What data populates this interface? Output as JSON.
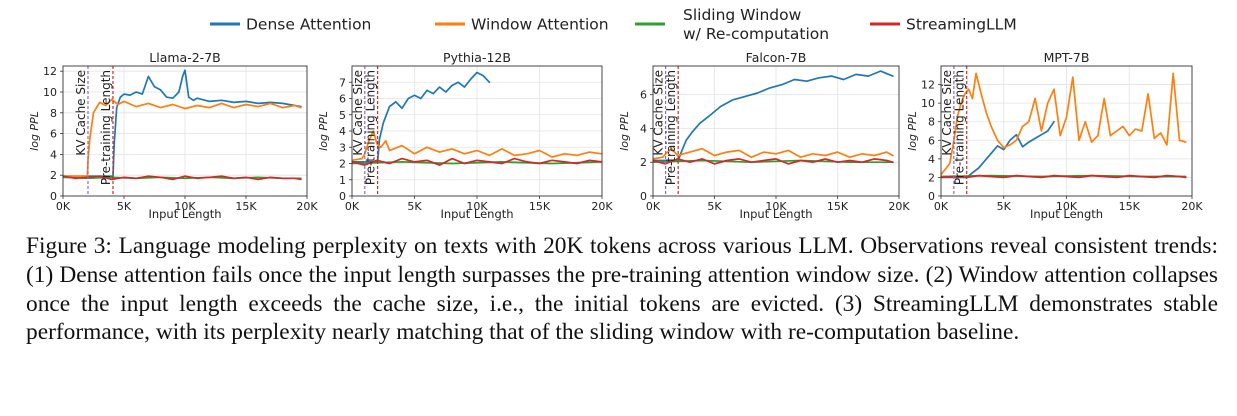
{
  "legend": {
    "position": "top-center",
    "entries": [
      {
        "label": "Dense Attention",
        "color": "#1f77b4"
      },
      {
        "label": "Window Attention",
        "color": "#ff7f0e"
      },
      {
        "label": "Sliding Window w/ Re-computation",
        "lines": [
          "Sliding Window",
          "w/ Re-computation"
        ],
        "color": "#2ca02c"
      },
      {
        "label": "StreamingLLM",
        "color": "#d62728"
      }
    ]
  },
  "caption": {
    "label": "Figure 3:",
    "text": "Language modeling perplexity on texts with 20K tokens across various LLM. Observations reveal consistent trends: (1) Dense attention fails once the input length surpasses the pre-training attention window size. (2) Window attention collapses once the input length exceeds the cache size, i.e., the initial tokens are evicted. (3) StreamingLLM demonstrates stable performance, with its perplexity nearly matching that of the sliding window with re-computation baseline."
  },
  "chart_data": [
    {
      "type": "line",
      "title": "Llama-2-7B",
      "xlabel": "Input Length",
      "ylabel": "log PPL",
      "xlim": [
        0,
        20000
      ],
      "ylim": [
        0,
        12.5
      ],
      "xticks": [
        0,
        5000,
        10000,
        15000,
        20000
      ],
      "xtick_labels": [
        "0K",
        "5K",
        "10K",
        "15K",
        "20K"
      ],
      "yticks": [
        0,
        2,
        4,
        6,
        8,
        10,
        12
      ],
      "grid": true,
      "vlines": [
        {
          "x": 2048,
          "label": "KV Cache Size",
          "color": "#9467bd"
        },
        {
          "x": 4096,
          "label": "Pre-training Length",
          "color": "#d62728"
        }
      ],
      "series": [
        {
          "name": "Dense Attention",
          "color": "#1f77b4",
          "x": [
            0,
            4096,
            4200,
            4400,
            4700,
            5000,
            5500,
            6000,
            6500,
            7000,
            7500,
            8000,
            8500,
            9000,
            9500,
            9800,
            10000,
            10300,
            10700,
            11000,
            12000,
            13000,
            14000,
            15000,
            16000,
            17000,
            18000,
            19000,
            19500
          ],
          "y": [
            1.9,
            1.9,
            5.0,
            8.5,
            9.5,
            9.8,
            9.7,
            10.0,
            9.8,
            11.5,
            10.5,
            10.2,
            9.5,
            9.4,
            10.0,
            11.5,
            12.1,
            9.5,
            9.2,
            9.4,
            9.1,
            9.2,
            9.0,
            9.1,
            8.9,
            9.0,
            8.9,
            8.7,
            8.6
          ]
        },
        {
          "name": "Window Attention",
          "color": "#ff7f0e",
          "x": [
            0,
            1000,
            2000,
            2048,
            2200,
            2500,
            3000,
            3500,
            4000,
            4500,
            5000,
            6000,
            7000,
            8000,
            9000,
            10000,
            11000,
            12000,
            13000,
            14000,
            15000,
            16000,
            17000,
            18000,
            19000,
            19500
          ],
          "y": [
            1.9,
            1.9,
            1.9,
            3.5,
            5.5,
            8.0,
            9.0,
            8.7,
            9.3,
            8.8,
            9.1,
            8.6,
            8.9,
            8.5,
            8.8,
            8.4,
            8.7,
            8.5,
            8.9,
            8.5,
            8.8,
            8.6,
            8.9,
            8.5,
            8.7,
            8.5
          ]
        },
        {
          "name": "Sliding Window w/ Re-computation",
          "color": "#2ca02c",
          "x": [
            0,
            2000,
            4000,
            6000,
            8000,
            10000,
            12000,
            14000,
            16000,
            18000,
            19500
          ],
          "y": [
            1.8,
            1.7,
            1.8,
            1.7,
            1.8,
            1.7,
            1.8,
            1.7,
            1.8,
            1.7,
            1.7
          ]
        },
        {
          "name": "StreamingLLM",
          "color": "#d62728",
          "x": [
            0,
            1000,
            2000,
            3000,
            4000,
            5000,
            6000,
            7000,
            8000,
            9000,
            10000,
            11000,
            12000,
            13000,
            14000,
            15000,
            16000,
            17000,
            18000,
            19000,
            19500
          ],
          "y": [
            1.9,
            1.7,
            1.8,
            1.9,
            1.6,
            1.8,
            1.7,
            1.9,
            1.8,
            1.6,
            1.9,
            1.7,
            1.8,
            1.9,
            1.7,
            1.8,
            1.6,
            1.8,
            1.7,
            1.7,
            1.6
          ]
        }
      ]
    },
    {
      "type": "line",
      "title": "Pythia-12B",
      "xlabel": "Input Length",
      "ylabel": "log PPL",
      "xlim": [
        0,
        20000
      ],
      "ylim": [
        0,
        8
      ],
      "xticks": [
        0,
        5000,
        10000,
        15000,
        20000
      ],
      "xtick_labels": [
        "0K",
        "5K",
        "10K",
        "15K",
        "20K"
      ],
      "yticks": [
        0,
        1,
        2,
        3,
        4,
        5,
        6,
        7
      ],
      "grid": true,
      "vlines": [
        {
          "x": 1024,
          "label": "KV Cache Size",
          "color": "#9467bd"
        },
        {
          "x": 2048,
          "label": "Pre-training Length",
          "color": "#d62728"
        }
      ],
      "series": [
        {
          "name": "Dense Attention",
          "color": "#1f77b4",
          "x": [
            0,
            2048,
            2200,
            2500,
            3000,
            3500,
            4000,
            4500,
            5000,
            5500,
            6000,
            6500,
            7000,
            7500,
            8000,
            8500,
            9000,
            9500,
            10000,
            10500,
            11000
          ],
          "y": [
            2.1,
            2.1,
            3.5,
            4.5,
            5.5,
            5.8,
            5.4,
            6.0,
            6.2,
            6.0,
            6.5,
            6.3,
            6.7,
            6.4,
            6.8,
            7.0,
            6.7,
            7.2,
            7.6,
            7.4,
            7.0
          ]
        },
        {
          "name": "Window Attention",
          "color": "#ff7f0e",
          "x": [
            0,
            800,
            1024,
            1300,
            1700,
            2000,
            2300,
            2700,
            3000,
            4000,
            5000,
            6000,
            7000,
            8000,
            9000,
            10000,
            11000,
            12000,
            13000,
            14000,
            15000,
            16000,
            17000,
            18000,
            19000,
            20000
          ],
          "y": [
            2.2,
            2.3,
            2.6,
            3.3,
            4.0,
            3.2,
            3.0,
            3.4,
            2.8,
            3.1,
            2.6,
            3.0,
            2.7,
            2.9,
            2.6,
            2.8,
            2.5,
            2.9,
            2.5,
            2.6,
            2.8,
            2.4,
            2.6,
            2.5,
            2.7,
            2.6
          ]
        },
        {
          "name": "Sliding Window w/ Re-computation",
          "color": "#2ca02c",
          "x": [
            0,
            4000,
            8000,
            12000,
            16000,
            20000
          ],
          "y": [
            2.0,
            2.1,
            2.0,
            2.1,
            2.0,
            2.1
          ]
        },
        {
          "name": "StreamingLLM",
          "color": "#d62728",
          "x": [
            0,
            1000,
            2000,
            3000,
            4000,
            5000,
            6000,
            7000,
            8000,
            9000,
            10000,
            11000,
            12000,
            13000,
            14000,
            15000,
            16000,
            17000,
            18000,
            19000,
            20000
          ],
          "y": [
            2.1,
            1.9,
            2.2,
            2.0,
            2.3,
            2.1,
            2.2,
            1.9,
            2.3,
            2.0,
            2.2,
            2.1,
            2.0,
            2.3,
            2.1,
            2.0,
            2.2,
            2.1,
            2.0,
            2.2,
            2.1
          ]
        }
      ]
    },
    {
      "type": "line",
      "title": "Falcon-7B",
      "xlabel": "Input Length",
      "ylabel": "log PPL",
      "xlim": [
        0,
        20000
      ],
      "ylim": [
        0,
        7.7
      ],
      "xticks": [
        0,
        5000,
        10000,
        15000,
        20000
      ],
      "xtick_labels": [
        "0K",
        "5K",
        "10K",
        "15K",
        "20K"
      ],
      "yticks": [
        0,
        2,
        4,
        6
      ],
      "grid": true,
      "vlines": [
        {
          "x": 1024,
          "label": "KV Cache Size",
          "color": "#9467bd"
        },
        {
          "x": 2048,
          "label": "Pre-training Length",
          "color": "#d62728"
        }
      ],
      "series": [
        {
          "name": "Dense Attention",
          "color": "#1f77b4",
          "x": [
            0,
            2048,
            2300,
            2700,
            3200,
            3800,
            4500,
            5500,
            6500,
            7500,
            8500,
            9500,
            10500,
            11500,
            12500,
            13500,
            14500,
            15500,
            16500,
            17500,
            18500,
            19500
          ],
          "y": [
            2.1,
            2.1,
            2.6,
            3.3,
            3.8,
            4.3,
            4.7,
            5.3,
            5.7,
            5.9,
            6.1,
            6.4,
            6.6,
            6.9,
            6.8,
            7.0,
            7.1,
            6.9,
            7.2,
            7.1,
            7.4,
            7.1
          ]
        },
        {
          "name": "Window Attention",
          "color": "#ff7f0e",
          "x": [
            0,
            800,
            1024,
            1500,
            2000,
            3000,
            4000,
            5000,
            6000,
            7000,
            8000,
            9000,
            10000,
            11000,
            12000,
            13000,
            14000,
            15000,
            16000,
            17000,
            18000,
            19000,
            19500
          ],
          "y": [
            2.2,
            2.3,
            2.5,
            2.8,
            2.4,
            2.6,
            2.8,
            2.4,
            2.6,
            2.7,
            2.3,
            2.6,
            2.5,
            2.7,
            2.3,
            2.5,
            2.4,
            2.6,
            2.3,
            2.5,
            2.4,
            2.6,
            2.4
          ]
        },
        {
          "name": "Sliding Window w/ Re-computation",
          "color": "#2ca02c",
          "x": [
            0,
            4000,
            8000,
            12000,
            16000,
            19500
          ],
          "y": [
            2.0,
            2.1,
            2.0,
            2.1,
            2.0,
            2.0
          ]
        },
        {
          "name": "StreamingLLM",
          "color": "#d62728",
          "x": [
            0,
            1000,
            2000,
            3000,
            4000,
            5000,
            6000,
            7000,
            8000,
            9000,
            10000,
            11000,
            12000,
            13000,
            14000,
            15000,
            16000,
            17000,
            18000,
            19000,
            19500
          ],
          "y": [
            2.1,
            1.9,
            2.2,
            2.0,
            2.2,
            1.9,
            2.1,
            2.2,
            2.0,
            2.1,
            2.2,
            1.9,
            2.1,
            2.0,
            2.2,
            2.0,
            2.1,
            2.0,
            2.2,
            2.1,
            2.0
          ]
        }
      ]
    },
    {
      "type": "line",
      "title": "MPT-7B",
      "xlabel": "Input Length",
      "ylabel": "log PPL",
      "xlim": [
        0,
        20000
      ],
      "ylim": [
        0,
        14
      ],
      "xticks": [
        0,
        5000,
        10000,
        15000,
        20000
      ],
      "xtick_labels": [
        "0K",
        "5K",
        "10K",
        "15K",
        "20K"
      ],
      "yticks": [
        0,
        2,
        4,
        6,
        8,
        10,
        12
      ],
      "grid": true,
      "vlines": [
        {
          "x": 1024,
          "label": "KV Cache Size",
          "color": "#9467bd"
        },
        {
          "x": 2048,
          "label": "Pre-training Length",
          "color": "#d62728"
        }
      ],
      "series": [
        {
          "name": "Dense Attention",
          "color": "#1f77b4",
          "x": [
            0,
            2048,
            2500,
            3000,
            3500,
            4000,
            4500,
            5000,
            5500,
            6000,
            6500,
            7000,
            7500,
            8000,
            8500,
            9000
          ],
          "y": [
            2.0,
            2.0,
            2.5,
            3.0,
            3.8,
            4.6,
            5.4,
            5.0,
            6.0,
            6.6,
            5.3,
            5.8,
            6.2,
            6.6,
            7.0,
            8.0
          ]
        },
        {
          "name": "Window Attention",
          "color": "#ff7f0e",
          "x": [
            0,
            700,
            1024,
            1300,
            1600,
            1900,
            2200,
            2500,
            2800,
            3200,
            3600,
            4000,
            4500,
            5000,
            5500,
            6000,
            6500,
            7000,
            7500,
            8000,
            8500,
            9000,
            9500,
            10000,
            10500,
            11000,
            11500,
            12000,
            12500,
            13000,
            13500,
            14000,
            14500,
            15000,
            15500,
            16000,
            16500,
            17000,
            17500,
            18000,
            18500,
            19000,
            19500
          ],
          "y": [
            2.3,
            3.5,
            6.0,
            8.5,
            10.0,
            11.0,
            11.5,
            10.5,
            13.2,
            11.0,
            9.0,
            7.5,
            6.0,
            5.2,
            5.5,
            6.0,
            7.5,
            8.0,
            10.5,
            7.0,
            10.0,
            11.5,
            6.5,
            8.5,
            12.8,
            6.0,
            8.0,
            5.8,
            6.5,
            10.5,
            6.5,
            7.0,
            7.5,
            6.5,
            7.2,
            7.0,
            11.0,
            6.2,
            6.8,
            5.5,
            13.2,
            6.0,
            5.8
          ]
        },
        {
          "name": "Sliding Window w/ Re-computation",
          "color": "#2ca02c",
          "x": [
            0,
            4000,
            8000,
            12000,
            16000,
            19500
          ],
          "y": [
            2.1,
            2.2,
            2.1,
            2.2,
            2.1,
            2.1
          ]
        },
        {
          "name": "StreamingLLM",
          "color": "#d62728",
          "x": [
            0,
            1000,
            2000,
            3000,
            4000,
            5000,
            6000,
            7000,
            8000,
            9000,
            10000,
            11000,
            12000,
            13000,
            14000,
            15000,
            16000,
            17000,
            18000,
            19000,
            19500
          ],
          "y": [
            2.0,
            2.1,
            2.0,
            2.2,
            2.1,
            2.0,
            2.2,
            2.1,
            2.0,
            2.2,
            2.1,
            2.0,
            2.2,
            2.1,
            2.0,
            2.2,
            2.1,
            2.0,
            2.2,
            2.1,
            2.0
          ]
        }
      ]
    }
  ]
}
